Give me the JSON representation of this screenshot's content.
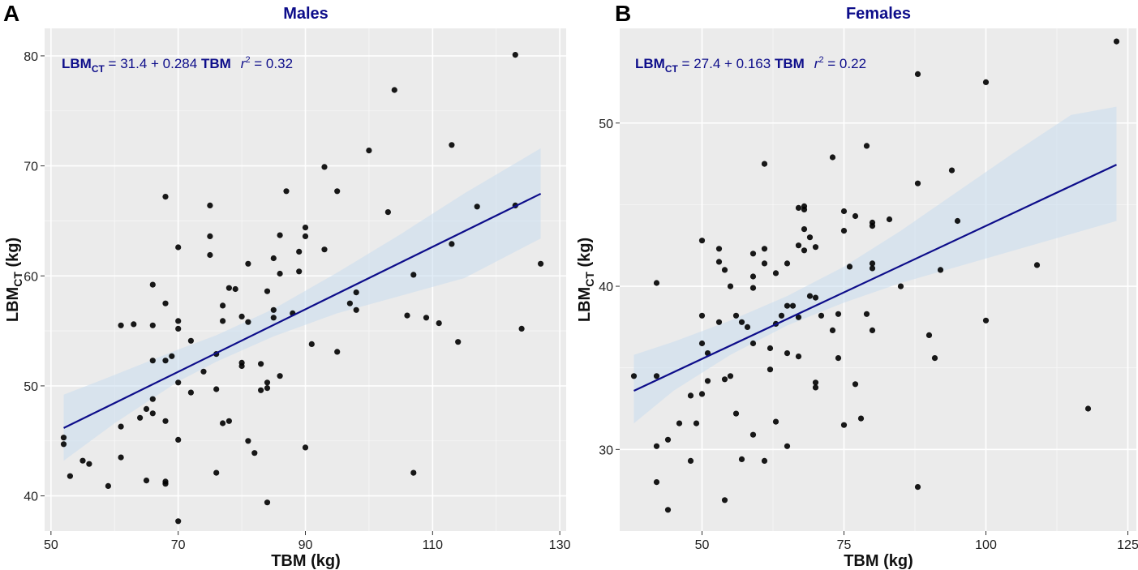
{
  "chart_data": [
    {
      "panel_label": "A",
      "type": "scatter",
      "title": "Males",
      "xlabel": "TBM (kg)",
      "ylabel_main": "LBM",
      "ylabel_sub": "CT",
      "ylabel_unit": " (kg)",
      "xlim": [
        49,
        131
      ],
      "ylim": [
        36.8,
        82.5
      ],
      "xticks": [
        50,
        70,
        90,
        110,
        130
      ],
      "yticks": [
        40,
        50,
        60,
        70,
        80
      ],
      "grid": true,
      "equation": {
        "lhs_main": "LBM",
        "lhs_sub": "CT",
        "rhs": " = 31.4 + 0.284 ",
        "var": "TBM",
        "r2_symbol": "r",
        "r2_exp": "2",
        "r2_value": " = 0.32"
      },
      "fit": {
        "intercept": 31.4,
        "slope": 0.284,
        "x_range": [
          52,
          127
        ]
      },
      "confidence_band": [
        {
          "x": 52,
          "lower": 43.2,
          "upper": 49.2
        },
        {
          "x": 60,
          "lower": 46.6,
          "upper": 51.0
        },
        {
          "x": 70,
          "lower": 50.4,
          "upper": 53.3
        },
        {
          "x": 76,
          "lower": 52.2,
          "upper": 54.6
        },
        {
          "x": 85,
          "lower": 54.5,
          "upper": 57.0
        },
        {
          "x": 95,
          "lower": 56.6,
          "upper": 60.3
        },
        {
          "x": 105,
          "lower": 58.2,
          "upper": 63.8
        },
        {
          "x": 115,
          "lower": 59.8,
          "upper": 67.5
        },
        {
          "x": 127,
          "lower": 63.4,
          "upper": 71.6
        }
      ],
      "points": [
        [
          52,
          45.3
        ],
        [
          52,
          44.7
        ],
        [
          53,
          41.8
        ],
        [
          55,
          43.2
        ],
        [
          56,
          42.9
        ],
        [
          59,
          40.9
        ],
        [
          61,
          55.5
        ],
        [
          61,
          46.3
        ],
        [
          61,
          43.5
        ],
        [
          63,
          55.6
        ],
        [
          64,
          47.1
        ],
        [
          65,
          47.9
        ],
        [
          65,
          41.4
        ],
        [
          66,
          59.2
        ],
        [
          66,
          55.5
        ],
        [
          66,
          52.3
        ],
        [
          66,
          48.8
        ],
        [
          66,
          47.5
        ],
        [
          68,
          67.2
        ],
        [
          68,
          57.5
        ],
        [
          68,
          52.3
        ],
        [
          68,
          46.8
        ],
        [
          68,
          41.3
        ],
        [
          68,
          41.1
        ],
        [
          69,
          52.7
        ],
        [
          70,
          62.6
        ],
        [
          70,
          55.9
        ],
        [
          70,
          55.2
        ],
        [
          70,
          50.3
        ],
        [
          70,
          45.1
        ],
        [
          70,
          37.7
        ],
        [
          72,
          54.1
        ],
        [
          72,
          49.4
        ],
        [
          74,
          51.3
        ],
        [
          75,
          66.4
        ],
        [
          75,
          63.6
        ],
        [
          75,
          61.9
        ],
        [
          76,
          52.9
        ],
        [
          76,
          49.7
        ],
        [
          76,
          42.1
        ],
        [
          77,
          57.3
        ],
        [
          77,
          55.9
        ],
        [
          77,
          46.6
        ],
        [
          78,
          58.9
        ],
        [
          78,
          46.8
        ],
        [
          79,
          58.8
        ],
        [
          80,
          56.3
        ],
        [
          80,
          52.1
        ],
        [
          80,
          51.8
        ],
        [
          81,
          61.1
        ],
        [
          81,
          55.8
        ],
        [
          81,
          45.0
        ],
        [
          82,
          43.9
        ],
        [
          83,
          52.0
        ],
        [
          83,
          49.6
        ],
        [
          84,
          58.6
        ],
        [
          84,
          50.3
        ],
        [
          84,
          49.8
        ],
        [
          84,
          39.4
        ],
        [
          85,
          61.6
        ],
        [
          85,
          56.9
        ],
        [
          85,
          56.2
        ],
        [
          86,
          63.7
        ],
        [
          86,
          60.2
        ],
        [
          86,
          50.9
        ],
        [
          87,
          67.7
        ],
        [
          88,
          56.6
        ],
        [
          89,
          62.2
        ],
        [
          89,
          60.4
        ],
        [
          90,
          64.4
        ],
        [
          90,
          63.6
        ],
        [
          90,
          44.4
        ],
        [
          91,
          53.8
        ],
        [
          93,
          69.9
        ],
        [
          93,
          62.4
        ],
        [
          95,
          67.7
        ],
        [
          95,
          53.1
        ],
        [
          97,
          57.5
        ],
        [
          98,
          58.5
        ],
        [
          98,
          56.9
        ],
        [
          100,
          71.4
        ],
        [
          103,
          65.8
        ],
        [
          104,
          76.9
        ],
        [
          106,
          56.4
        ],
        [
          107,
          60.1
        ],
        [
          107,
          42.1
        ],
        [
          109,
          56.2
        ],
        [
          111,
          55.7
        ],
        [
          113,
          71.9
        ],
        [
          113,
          62.9
        ],
        [
          114,
          54.0
        ],
        [
          117,
          66.3
        ],
        [
          123,
          80.1
        ],
        [
          123,
          66.4
        ],
        [
          124,
          55.2
        ],
        [
          127,
          61.1
        ]
      ]
    },
    {
      "panel_label": "B",
      "type": "scatter",
      "title": "Females",
      "xlabel": "TBM (kg)",
      "ylabel_main": "LBM",
      "ylabel_sub": "CT",
      "ylabel_unit": " (kg)",
      "xlim": [
        35.5,
        126.5
      ],
      "ylim": [
        25,
        55.8
      ],
      "xticks": [
        50,
        75,
        100,
        125
      ],
      "yticks": [
        30,
        40,
        50
      ],
      "grid": true,
      "equation": {
        "lhs_main": "LBM",
        "lhs_sub": "CT",
        "rhs": " = 27.4 + 0.163 ",
        "var": "TBM",
        "r2_symbol": "r",
        "r2_exp": "2",
        "r2_value": " = 0.22"
      },
      "fit": {
        "intercept": 27.4,
        "slope": 0.163,
        "x_range": [
          38,
          123
        ]
      },
      "confidence_band": [
        {
          "x": 38,
          "lower": 31.6,
          "upper": 35.8
        },
        {
          "x": 45,
          "lower": 33.6,
          "upper": 36.6
        },
        {
          "x": 55,
          "lower": 35.8,
          "upper": 37.9
        },
        {
          "x": 65,
          "lower": 37.6,
          "upper": 39.4
        },
        {
          "x": 75,
          "lower": 39.0,
          "upper": 41.2
        },
        {
          "x": 85,
          "lower": 40.2,
          "upper": 43.4
        },
        {
          "x": 95,
          "lower": 41.2,
          "upper": 45.8
        },
        {
          "x": 105,
          "lower": 42.2,
          "upper": 48.2
        },
        {
          "x": 115,
          "lower": 43.2,
          "upper": 50.5
        },
        {
          "x": 123,
          "lower": 44.0,
          "upper": 51.0
        }
      ],
      "points": [
        [
          38,
          34.5
        ],
        [
          42,
          40.2
        ],
        [
          42,
          34.5
        ],
        [
          42,
          30.2
        ],
        [
          42,
          28.0
        ],
        [
          44,
          30.6
        ],
        [
          44,
          26.3
        ],
        [
          46,
          31.6
        ],
        [
          48,
          33.3
        ],
        [
          48,
          29.3
        ],
        [
          49,
          31.6
        ],
        [
          50,
          42.8
        ],
        [
          50,
          38.2
        ],
        [
          50,
          36.5
        ],
        [
          50,
          33.4
        ],
        [
          51,
          35.9
        ],
        [
          51,
          34.2
        ],
        [
          53,
          42.3
        ],
        [
          53,
          41.5
        ],
        [
          53,
          37.8
        ],
        [
          54,
          41.0
        ],
        [
          54,
          34.3
        ],
        [
          54,
          26.9
        ],
        [
          55,
          40.0
        ],
        [
          55,
          34.5
        ],
        [
          56,
          38.2
        ],
        [
          56,
          32.2
        ],
        [
          57,
          37.8
        ],
        [
          57,
          29.4
        ],
        [
          58,
          37.5
        ],
        [
          59,
          42.0
        ],
        [
          59,
          40.6
        ],
        [
          59,
          39.9
        ],
        [
          59,
          36.5
        ],
        [
          59,
          30.9
        ],
        [
          61,
          47.5
        ],
        [
          61,
          42.3
        ],
        [
          61,
          41.4
        ],
        [
          61,
          29.3
        ],
        [
          62,
          36.2
        ],
        [
          62,
          34.9
        ],
        [
          63,
          40.8
        ],
        [
          63,
          37.7
        ],
        [
          63,
          31.7
        ],
        [
          64,
          38.2
        ],
        [
          65,
          41.4
        ],
        [
          65,
          38.8
        ],
        [
          65,
          35.9
        ],
        [
          65,
          30.2
        ],
        [
          66,
          38.8
        ],
        [
          67,
          44.8
        ],
        [
          67,
          42.5
        ],
        [
          67,
          38.1
        ],
        [
          67,
          35.7
        ],
        [
          68,
          44.9
        ],
        [
          68,
          44.7
        ],
        [
          68,
          43.5
        ],
        [
          68,
          42.2
        ],
        [
          69,
          43.0
        ],
        [
          69,
          39.4
        ],
        [
          70,
          42.4
        ],
        [
          70,
          39.3
        ],
        [
          70,
          34.1
        ],
        [
          70,
          33.8
        ],
        [
          71,
          38.2
        ],
        [
          73,
          47.9
        ],
        [
          73,
          37.3
        ],
        [
          74,
          38.3
        ],
        [
          74,
          35.6
        ],
        [
          75,
          44.6
        ],
        [
          75,
          43.4
        ],
        [
          75,
          31.5
        ],
        [
          76,
          41.2
        ],
        [
          77,
          44.3
        ],
        [
          77,
          34.0
        ],
        [
          78,
          31.9
        ],
        [
          79,
          48.6
        ],
        [
          79,
          38.3
        ],
        [
          80,
          43.9
        ],
        [
          80,
          43.7
        ],
        [
          80,
          41.4
        ],
        [
          80,
          41.1
        ],
        [
          80,
          37.3
        ],
        [
          83,
          44.1
        ],
        [
          85,
          40.0
        ],
        [
          88,
          53.0
        ],
        [
          88,
          46.3
        ],
        [
          88,
          27.7
        ],
        [
          90,
          37.0
        ],
        [
          91,
          35.6
        ],
        [
          92,
          41.0
        ],
        [
          94,
          47.1
        ],
        [
          95,
          44.0
        ],
        [
          100,
          52.5
        ],
        [
          100,
          37.9
        ],
        [
          109,
          41.3
        ],
        [
          118,
          32.5
        ],
        [
          123,
          55.0
        ]
      ]
    }
  ]
}
